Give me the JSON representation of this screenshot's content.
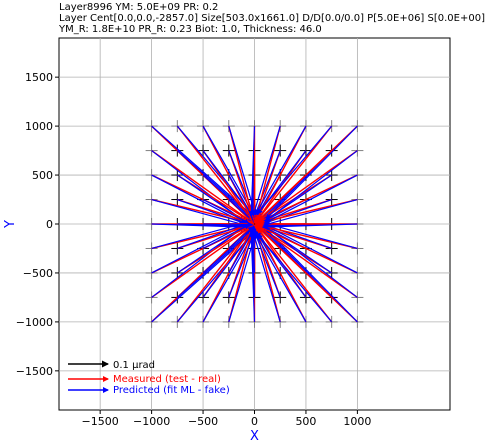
{
  "header": {
    "line1": "Layer8996 YM: 5.0E+09 PR: 0.2",
    "line2": "Layer Cent[0.0,0.0,-2857.0] Size[503.0x1661.0] D/D[0.0/0.0] P[5.0E+06] S[0.0E+00]",
    "line3": "YM_R: 1.8E+10 PR_R: 0.23 Biot: 1.0, Thickness: 46.0"
  },
  "chart_data": {
    "type": "quiver",
    "xlabel": "X",
    "ylabel": "Y",
    "xlim": [
      -1900,
      1900
    ],
    "ylim": [
      -1900,
      1900
    ],
    "xticks": [
      -1500,
      -1000,
      -500,
      0,
      500,
      1000
    ],
    "yticks": [
      -1500,
      -1000,
      -500,
      0,
      500,
      1000,
      1500
    ],
    "grid": true,
    "grid_spacing": 500,
    "stations_x": [
      -1000,
      -750,
      -500,
      -250,
      0,
      250,
      500,
      750,
      1000
    ],
    "stations_y": [
      -1000,
      -750,
      -500,
      -250,
      0,
      250,
      500,
      750,
      1000
    ],
    "vector_pattern": "radial toward center (0,0)",
    "scale_arrow": {
      "label": "0.1 μrad",
      "color": "#000000"
    },
    "series": [
      {
        "name": "Measured (test - real)",
        "color": "#ff0000"
      },
      {
        "name": "Predicted (fit ML - fake)",
        "color": "#0000ff"
      }
    ],
    "legend_position": "lower-left",
    "station_marker": "+",
    "axis_label_color": "#0000ff"
  }
}
